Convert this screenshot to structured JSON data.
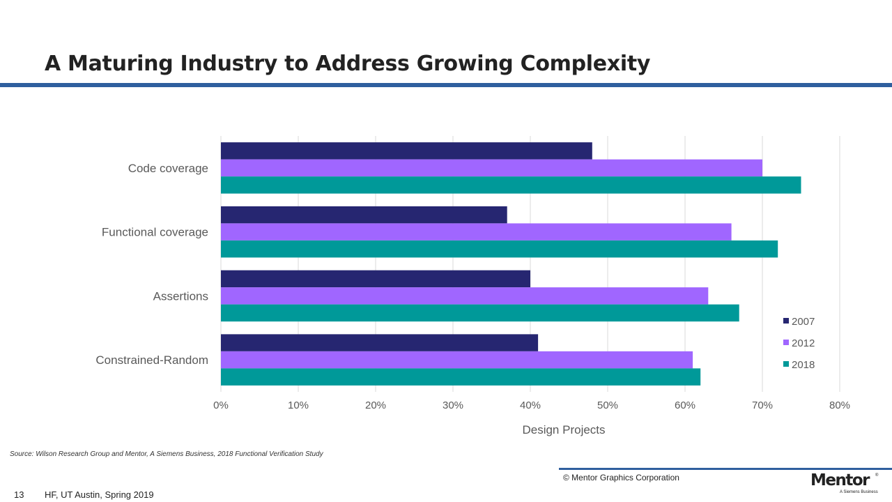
{
  "slide": {
    "title": "A Maturing Industry to Address Growing Complexity",
    "source": "Source:  Wilson Research Group and Mentor, A Siemens Business, 2018 Functional Verification Study",
    "copyright": "© Mentor Graphics Corporation",
    "page_number": "13",
    "course": "HF, UT Austin, Spring 2019",
    "logo": {
      "wordmark": "Mentor",
      "registered": "®",
      "tagline": "A Siemens Business"
    }
  },
  "chart_data": {
    "type": "bar",
    "orientation": "horizontal",
    "categories": [
      "Code coverage",
      "Functional coverage",
      "Assertions",
      "Constrained-Random"
    ],
    "series": [
      {
        "name": "2007",
        "color": "#262671",
        "values": [
          48,
          37,
          40,
          41
        ]
      },
      {
        "name": "2012",
        "color": "#a066ff",
        "values": [
          70,
          66,
          63,
          61
        ]
      },
      {
        "name": "2018",
        "color": "#009999",
        "values": [
          75,
          72,
          67,
          62
        ]
      }
    ],
    "xlabel": "Design Projects",
    "ylabel": "",
    "xlim": [
      0,
      80
    ],
    "xticks": [
      "0%",
      "10%",
      "20%",
      "30%",
      "40%",
      "50%",
      "60%",
      "70%",
      "80%"
    ],
    "grid": true,
    "legend_position": "right"
  }
}
